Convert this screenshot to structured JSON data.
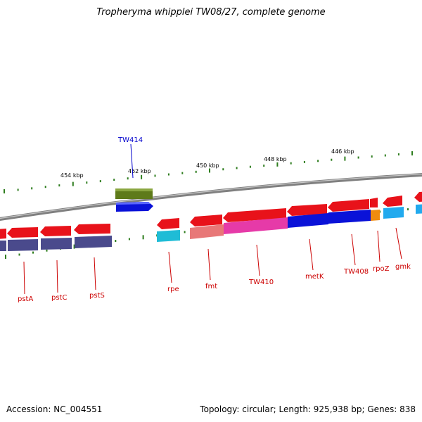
{
  "title": "Tropheryma whipplei TW08/27, complete genome",
  "footer": {
    "accession": "Accession: NC_004551",
    "summary": "Topology: circular; Length: 925,938 bp; Genes: 838"
  },
  "colors": {
    "backbone": "#808080",
    "cds_red": "#e8121a",
    "gene_purple": "#4a4a8c",
    "cyan": "#1fbcd6",
    "dark_blue": "#0a12d8",
    "magenta": "#e63aa8",
    "salmon": "#e87878",
    "orange": "#f08c10",
    "olive": "#5e7a1a",
    "sky": "#22aaee",
    "tick_green": "#2e7d1e"
  },
  "scale_labels": [
    "454 kbp",
    "452 kbp",
    "450 kbp",
    "448 kbp",
    "446 kbp"
  ],
  "gene_labels": [
    "pstA",
    "pstC",
    "pstS",
    "rpe",
    "fmt",
    "TW410",
    "metK",
    "TW408",
    "rpoZ",
    "gmk",
    "TW414"
  ]
}
